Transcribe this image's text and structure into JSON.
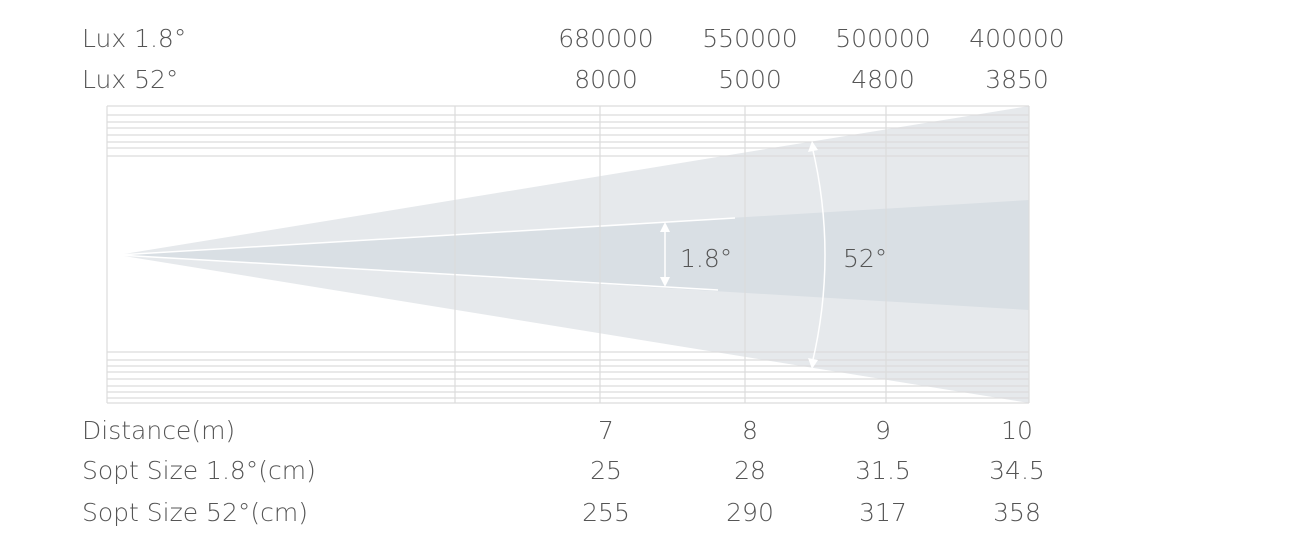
{
  "lux_rows": [
    {
      "label": "Lux 1.8°",
      "values": [
        "680000",
        "550000",
        "500000",
        "400000"
      ]
    },
    {
      "label": "Lux 52°",
      "values": [
        "8000",
        "5000",
        "4800",
        "3850"
      ]
    }
  ],
  "beam_labels": {
    "narrow": "1.8°",
    "wide": "52°"
  },
  "spec_rows": [
    {
      "label": "Distance(m)",
      "values": [
        7,
        8,
        9,
        10
      ]
    },
    {
      "label": "Sopt Size 1.8°(cm)",
      "values": [
        25,
        28,
        31.5,
        34.5
      ]
    },
    {
      "label": "Sopt Size 52°(cm)",
      "values": [
        255,
        290,
        317,
        358
      ]
    }
  ]
}
